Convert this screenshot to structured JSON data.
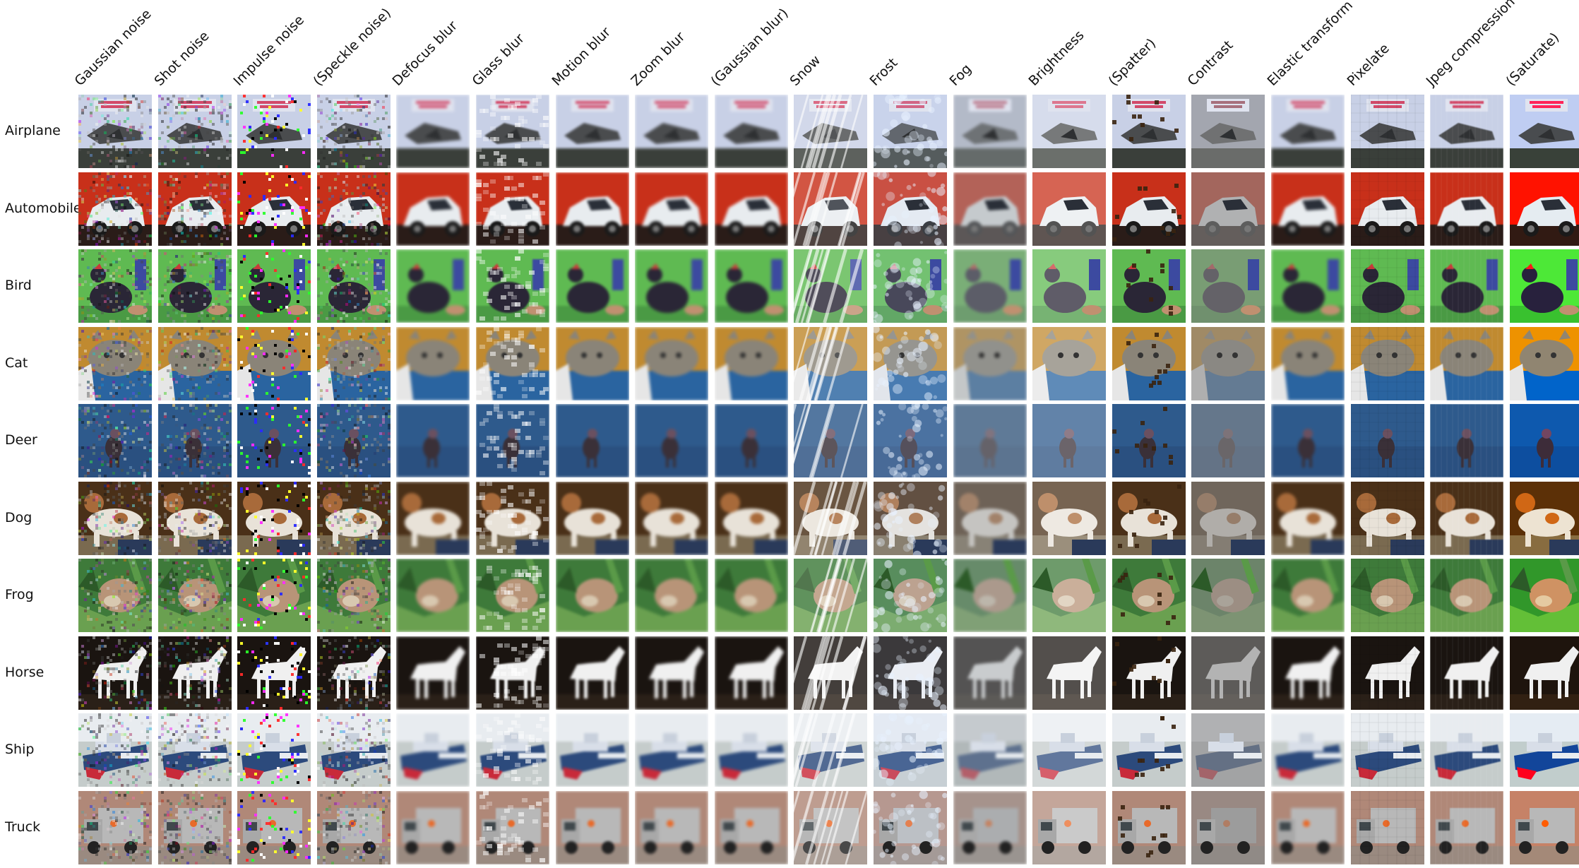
{
  "figure": {
    "corruptions": [
      {
        "label": "Gaussian noise",
        "kind": "noise"
      },
      {
        "label": "Shot noise",
        "kind": "noise"
      },
      {
        "label": "Impulse noise",
        "kind": "impulse"
      },
      {
        "label": "(Speckle noise)",
        "kind": "noise"
      },
      {
        "label": "Defocus blur",
        "kind": "blur"
      },
      {
        "label": "Glass blur",
        "kind": "glass"
      },
      {
        "label": "Motion blur",
        "kind": "motion"
      },
      {
        "label": "Zoom blur",
        "kind": "blur"
      },
      {
        "label": "(Gaussian blur)",
        "kind": "blur"
      },
      {
        "label": "Snow",
        "kind": "snow"
      },
      {
        "label": "Frost",
        "kind": "frost"
      },
      {
        "label": "Fog",
        "kind": "fog"
      },
      {
        "label": "Brightness",
        "kind": "bright"
      },
      {
        "label": "(Spatter)",
        "kind": "spatter"
      },
      {
        "label": "Contrast",
        "kind": "contrast"
      },
      {
        "label": "Elastic transform",
        "kind": "elastic"
      },
      {
        "label": "Pixelate",
        "kind": "pixel"
      },
      {
        "label": "Jpeg compression",
        "kind": "jpeg"
      },
      {
        "label": "(Saturate)",
        "kind": "saturate"
      }
    ],
    "classes": [
      {
        "label": "Airplane",
        "subject": "airplane",
        "colors": {
          "bg": "#c8d0e6",
          "ground": "#3a3f3a",
          "subject": "#4a4c4e",
          "accent": "#d24a6a"
        }
      },
      {
        "label": "Automobile",
        "subject": "car",
        "colors": {
          "bg": "#c8301a",
          "ground": "#2a1c18",
          "subject": "#e8ecef",
          "accent": "#1a1a1a"
        }
      },
      {
        "label": "Bird",
        "subject": "bird",
        "colors": {
          "bg": "#5fba52",
          "ground": "#4a9a44",
          "subject": "#2a2636",
          "accent": "#c83a3a"
        }
      },
      {
        "label": "Cat",
        "subject": "cat",
        "colors": {
          "bg": "#c08a30",
          "ground": "#2a64a0",
          "subject": "#8a8478",
          "accent": "#e6e6e6"
        }
      },
      {
        "label": "Deer",
        "subject": "deer",
        "colors": {
          "bg": "#2e5a8c",
          "ground": "#2a5080",
          "subject": "#3a3038",
          "accent": "#6a5060"
        }
      },
      {
        "label": "Dog",
        "subject": "dog",
        "colors": {
          "bg": "#4a3018",
          "ground": "#7a6a50",
          "subject": "#e8e2d8",
          "accent": "#a86a3a"
        }
      },
      {
        "label": "Frog",
        "subject": "frog",
        "colors": {
          "bg": "#3e7a3a",
          "ground": "#6aa050",
          "subject": "#b89478",
          "accent": "#d8c8b0"
        }
      },
      {
        "label": "Horse",
        "subject": "horse",
        "colors": {
          "bg": "#1a1410",
          "ground": "#2a2018",
          "subject": "#f0f0f0",
          "accent": "#504038"
        }
      },
      {
        "label": "Ship",
        "subject": "ship",
        "colors": {
          "bg": "#e8ecf0",
          "ground": "#5a6a5a",
          "subject": "#2c4a7c",
          "accent": "#c82a3a"
        }
      },
      {
        "label": "Truck",
        "subject": "truck",
        "colors": {
          "bg": "#b08878",
          "ground": "#9a8a80",
          "subject": "#b8b8b8",
          "accent": "#e86a2a"
        }
      }
    ]
  }
}
